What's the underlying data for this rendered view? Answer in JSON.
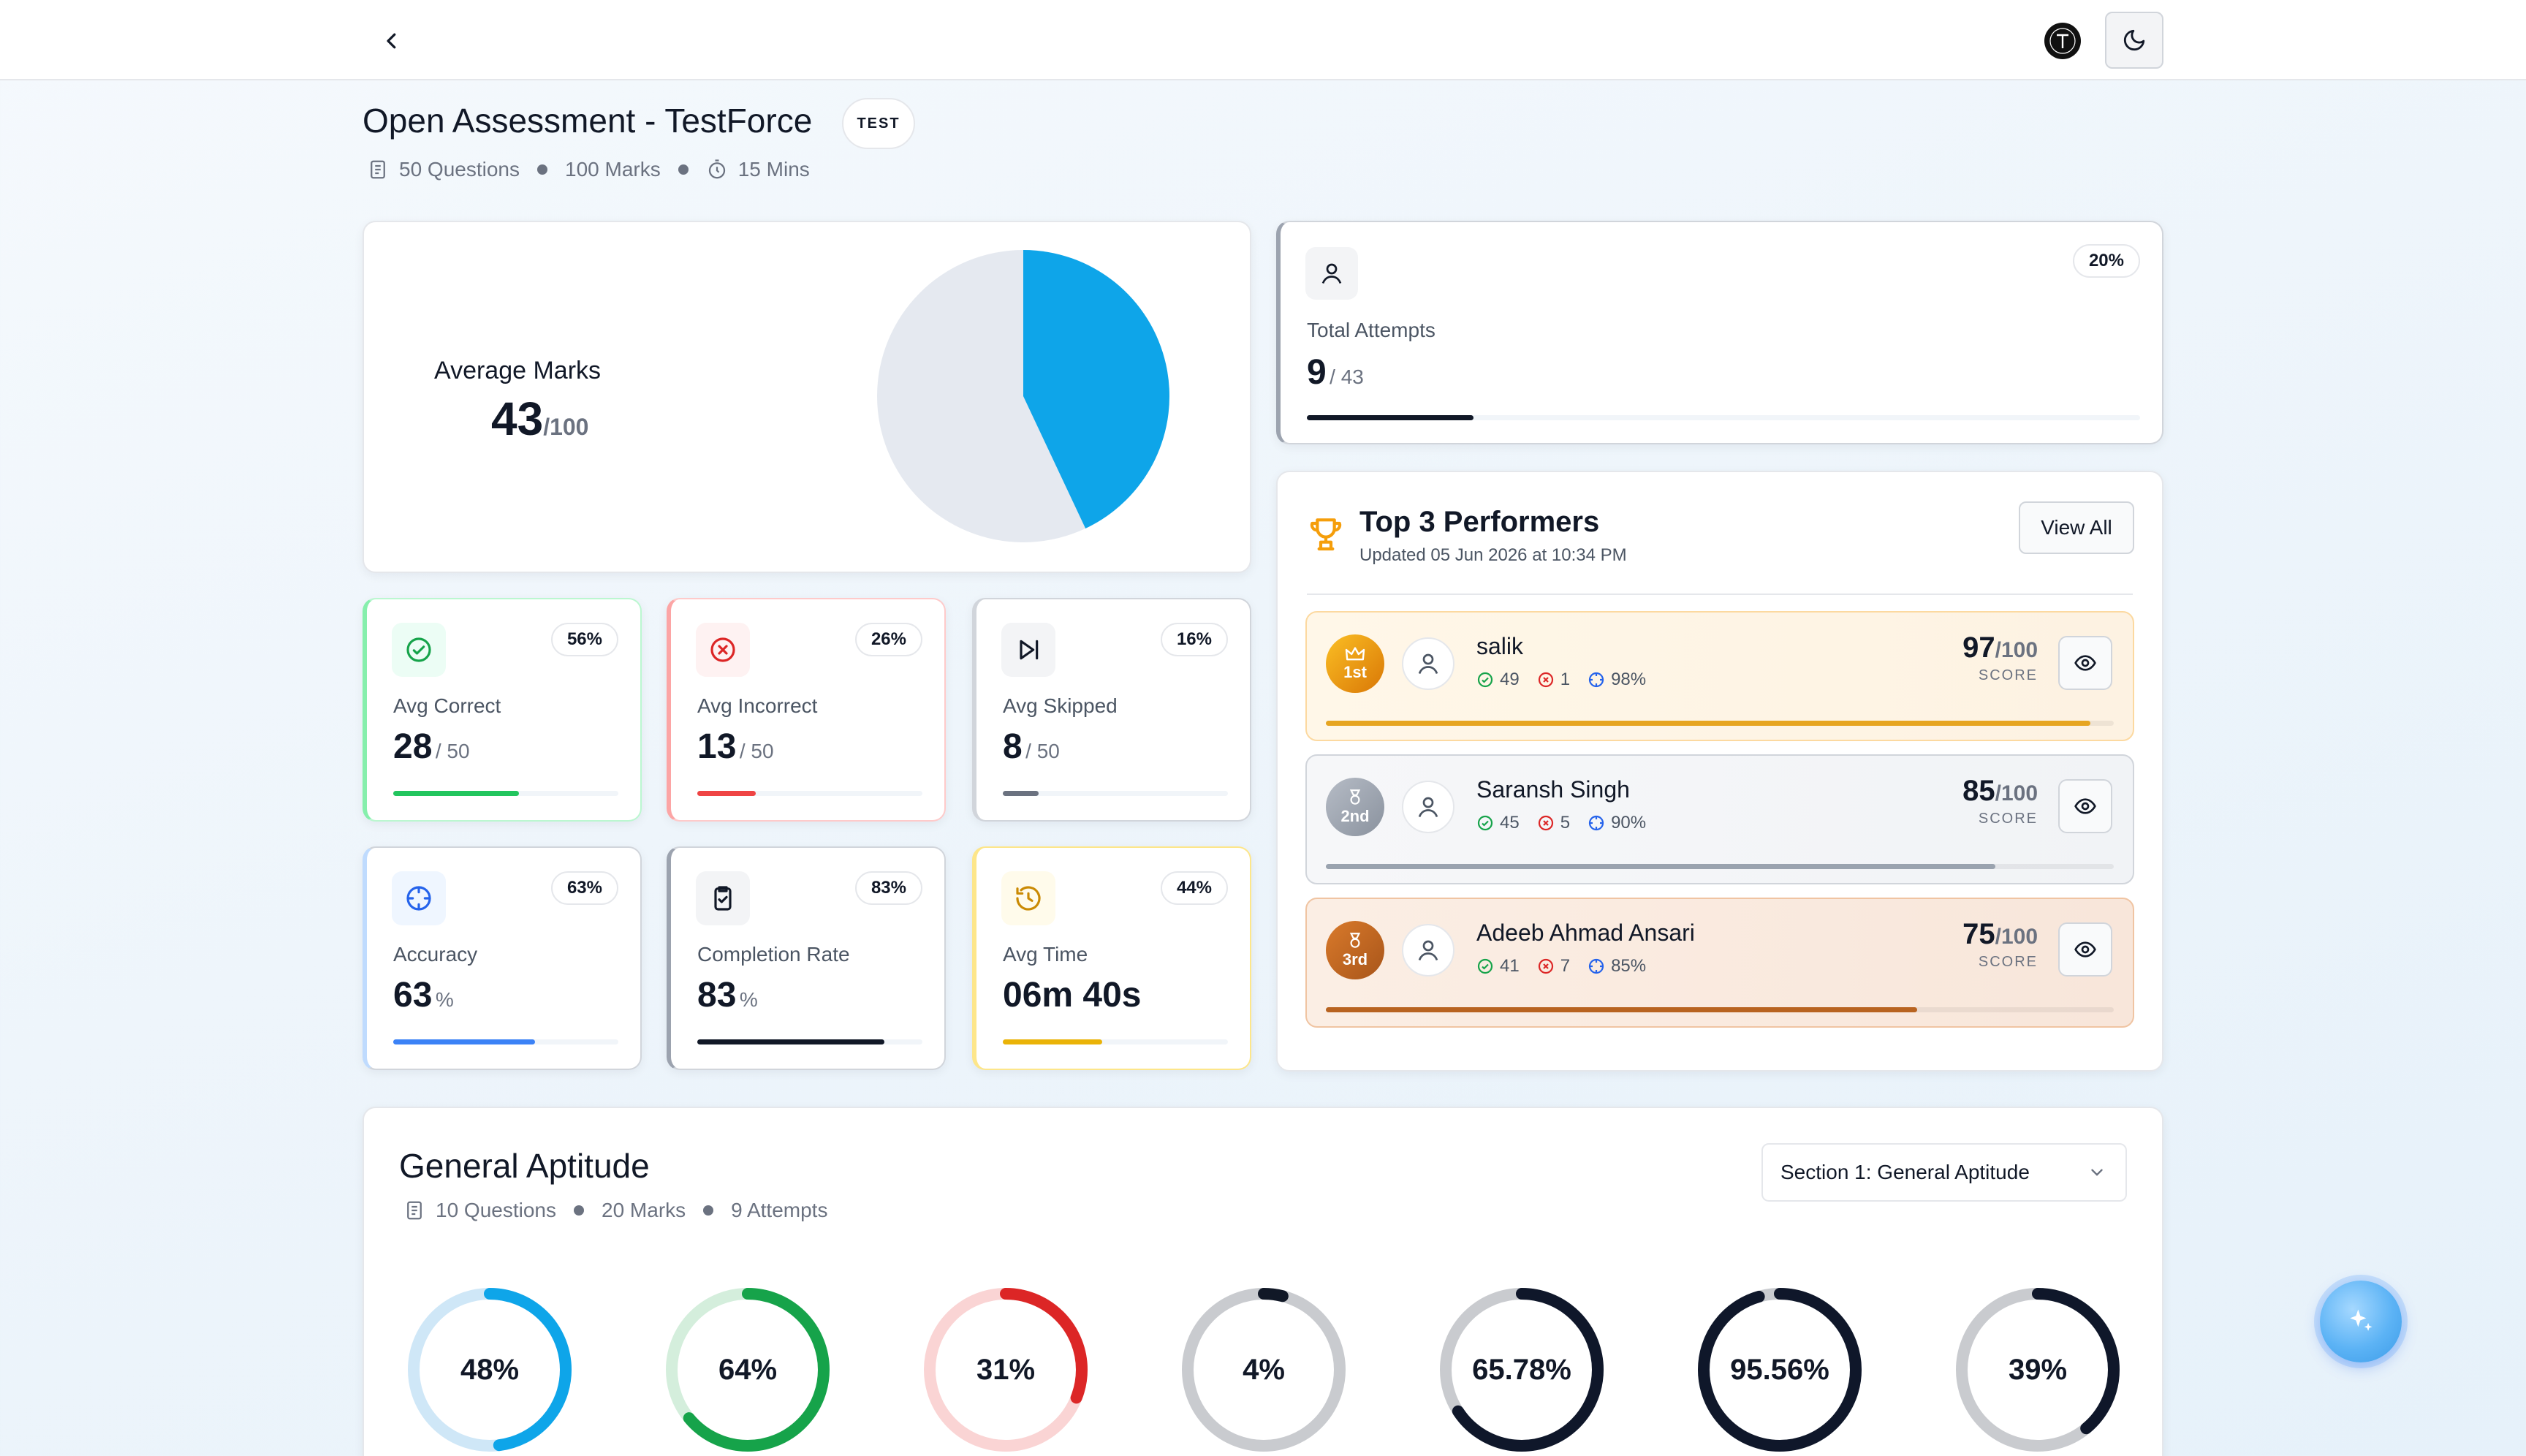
{
  "header": {
    "title": "Open Assessment - TestForce",
    "badge": "TEST",
    "meta": {
      "questions": "50 Questions",
      "marks": "100 Marks",
      "duration": "15 Mins"
    }
  },
  "average_marks": {
    "label": "Average Marks",
    "value": "43",
    "max": "/100",
    "pie_fraction": 0.43
  },
  "total_attempts": {
    "label": "Total Attempts",
    "value": "9",
    "max": "/ 43",
    "badge": "20%",
    "progress": 0.2
  },
  "stats": [
    {
      "key": "correct",
      "label": "Avg Correct",
      "value": "28",
      "suffix": "/ 50",
      "badge": "56%",
      "progress": 0.56,
      "color": "#22c55e",
      "icon": "check-circle-icon"
    },
    {
      "key": "incorrect",
      "label": "Avg Incorrect",
      "value": "13",
      "suffix": "/ 50",
      "badge": "26%",
      "progress": 0.26,
      "color": "#ef4444",
      "icon": "x-circle-icon"
    },
    {
      "key": "skipped",
      "label": "Avg Skipped",
      "value": "8",
      "suffix": "/ 50",
      "badge": "16%",
      "progress": 0.16,
      "color": "#6b7280",
      "icon": "skip-forward-icon"
    },
    {
      "key": "accuracy",
      "label": "Accuracy",
      "value": "63",
      "suffix": "%",
      "badge": "63%",
      "progress": 0.63,
      "color": "#3b82f6",
      "icon": "crosshair-icon"
    },
    {
      "key": "completion",
      "label": "Completion Rate",
      "value": "83",
      "suffix": "%",
      "badge": "83%",
      "progress": 0.83,
      "color": "#111827",
      "icon": "clipboard-check-icon"
    },
    {
      "key": "time",
      "label": "Avg Time",
      "value": "06m 40s",
      "suffix": "",
      "badge": "44%",
      "progress": 0.44,
      "color": "#eab308",
      "icon": "history-icon"
    }
  ],
  "top_performers": {
    "title": "Top 3 Performers",
    "updated": "Updated 05 Jun 2026 at 10:34 PM",
    "view_all": "View All",
    "score_label": "SCORE",
    "items": [
      {
        "rank": "1st",
        "name": "salik",
        "correct": "49",
        "incorrect": "1",
        "accuracy": "98%",
        "score": "97",
        "max": "/100",
        "progress": 0.97
      },
      {
        "rank": "2nd",
        "name": "Saransh Singh",
        "correct": "45",
        "incorrect": "5",
        "accuracy": "90%",
        "score": "85",
        "max": "/100",
        "progress": 0.85
      },
      {
        "rank": "3rd",
        "name": "Adeeb Ahmad Ansari",
        "correct": "41",
        "incorrect": "7",
        "accuracy": "85%",
        "score": "75",
        "max": "/100",
        "progress": 0.75
      }
    ]
  },
  "section": {
    "title": "General Aptitude",
    "meta": {
      "questions": "10 Questions",
      "marks": "20 Marks",
      "attempts": "9 Attempts"
    },
    "select_value": "Section 1: General Aptitude",
    "rings": [
      {
        "label": "48%",
        "value": 0.48,
        "color": "#0ea5e9",
        "track": "#cfe7f7"
      },
      {
        "label": "64%",
        "value": 0.64,
        "color": "#16a34a",
        "track": "#d4eedc"
      },
      {
        "label": "31%",
        "value": 0.31,
        "color": "#dc2626",
        "track": "#fad4d4"
      },
      {
        "label": "4%",
        "value": 0.04,
        "color": "#111827",
        "track": "#c9cbcf"
      },
      {
        "label": "65.78%",
        "value": 0.6578,
        "color": "#0f172a",
        "track": "#c9cbcf"
      },
      {
        "label": "95.56%",
        "value": 0.9556,
        "color": "#0f172a",
        "track": "#c9cbcf"
      },
      {
        "label": "39%",
        "value": 0.39,
        "color": "#0f172a",
        "track": "#c9cbcf"
      }
    ]
  }
}
